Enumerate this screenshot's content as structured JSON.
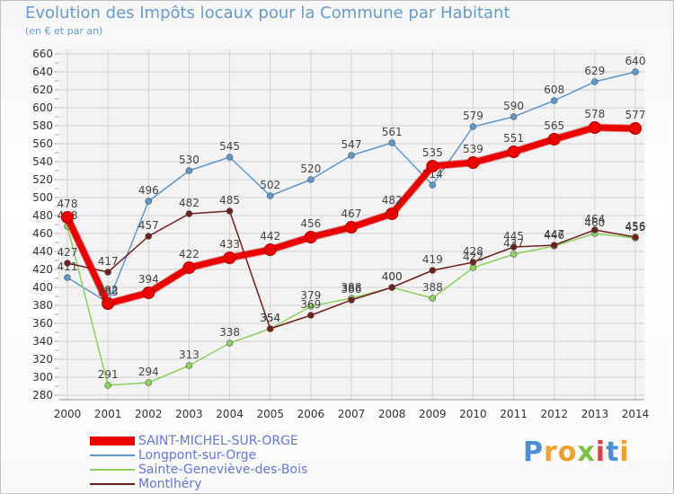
{
  "title": "Evolution des Impôts locaux pour la Commune par Habitant",
  "subtitle": "(en € et par an)",
  "logo": {
    "text": "Proxiti",
    "colors": [
      "#4a8fd8",
      "#f0a030",
      "#f0a030",
      "#80c040",
      "#e04040",
      "#4a8fd8",
      "#f0a030"
    ]
  },
  "chart_data": {
    "type": "line",
    "x": [
      2000,
      2001,
      2002,
      2003,
      2004,
      2005,
      2006,
      2007,
      2008,
      2009,
      2010,
      2011,
      2012,
      2013,
      2014
    ],
    "ylim": [
      280,
      660
    ],
    "yticks": [
      280,
      300,
      320,
      340,
      360,
      380,
      400,
      420,
      440,
      460,
      480,
      500,
      520,
      540,
      560,
      580,
      600,
      620,
      640,
      660
    ],
    "grid": true,
    "legend_position": "bottom-left",
    "series": [
      {
        "name": "Longpont-sur-Orge",
        "color": "#5f97c9",
        "values": [
          411,
          383,
          496,
          530,
          545,
          502,
          520,
          547,
          561,
          514,
          579,
          590,
          608,
          629,
          640
        ]
      },
      {
        "name": "Sainte-Geneviève-des-Bois",
        "color": "#8fd060",
        "values": [
          468,
          291,
          294,
          313,
          338,
          354,
          379,
          388,
          400,
          388,
          422,
          437,
          446,
          460,
          455
        ]
      },
      {
        "name": "Montlhéry",
        "color": "#6e2020",
        "values": [
          427,
          417,
          457,
          482,
          485,
          354,
          369,
          386,
          400,
          419,
          428,
          445,
          447,
          464,
          456
        ]
      },
      {
        "name": "SAINT-MICHEL-SUR-ORGE",
        "color": "#ee0000",
        "values": [
          478,
          382,
          394,
          422,
          433,
          442,
          456,
          467,
          482,
          535,
          539,
          551,
          565,
          578,
          577
        ]
      }
    ]
  }
}
